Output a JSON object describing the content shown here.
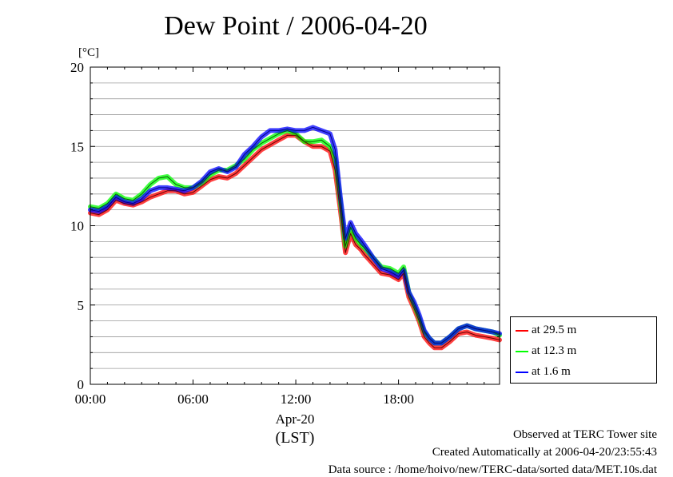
{
  "chart_data": {
    "type": "line",
    "title": "Dew Point / 2006-04-20",
    "yunit": "[°C]",
    "ylim": [
      0,
      20
    ],
    "xlim": [
      0,
      23.9
    ],
    "yticks": [
      "0",
      "5",
      "10",
      "15",
      "20"
    ],
    "xticks": [
      {
        "label": "00:00",
        "value": 0
      },
      {
        "label": "06:00",
        "value": 6
      },
      {
        "label": "12:00",
        "value": 12
      },
      {
        "label": "18:00",
        "value": 18
      }
    ],
    "xdate": "Apr-20",
    "xzone": "(LST)",
    "grid": true,
    "legend_position": "bottom-right",
    "series": [
      {
        "name": "at 29.5 m",
        "color": "#ff0000",
        "x": [
          0,
          0.5,
          1.0,
          1.5,
          2.0,
          2.5,
          3.0,
          3.5,
          4.0,
          4.5,
          5.0,
          5.5,
          6.0,
          6.5,
          7.0,
          7.5,
          8.0,
          8.5,
          9.0,
          9.5,
          10.0,
          10.5,
          11.0,
          11.5,
          12.0,
          12.5,
          13.0,
          13.5,
          14.0,
          14.3,
          14.6,
          14.9,
          15.2,
          15.5,
          15.8,
          16.0,
          16.5,
          17.0,
          17.5,
          18.0,
          18.3,
          18.6,
          18.9,
          19.2,
          19.5,
          19.8,
          20.1,
          20.5,
          21.0,
          21.5,
          22.0,
          22.5,
          23.0,
          23.5,
          23.9
        ],
        "y": [
          10.8,
          10.7,
          11.0,
          11.6,
          11.4,
          11.3,
          11.5,
          11.8,
          12.0,
          12.2,
          12.2,
          12.0,
          12.1,
          12.5,
          12.9,
          13.1,
          13.0,
          13.3,
          13.8,
          14.3,
          14.8,
          15.1,
          15.4,
          15.7,
          15.7,
          15.3,
          15.0,
          15.0,
          14.7,
          13.5,
          11.0,
          8.3,
          9.5,
          8.8,
          8.5,
          8.2,
          7.6,
          7.0,
          6.9,
          6.6,
          7.0,
          5.5,
          4.8,
          4.0,
          3.0,
          2.6,
          2.3,
          2.3,
          2.7,
          3.2,
          3.3,
          3.1,
          3.0,
          2.9,
          2.8
        ]
      },
      {
        "name": "at 12.3 m",
        "color": "#00ff00",
        "x": [
          0,
          0.5,
          1.0,
          1.5,
          2.0,
          2.5,
          3.0,
          3.5,
          4.0,
          4.5,
          5.0,
          5.5,
          6.0,
          6.5,
          7.0,
          7.5,
          8.0,
          8.5,
          9.0,
          9.5,
          10.0,
          10.5,
          11.0,
          11.5,
          12.0,
          12.5,
          13.0,
          13.5,
          14.0,
          14.3,
          14.6,
          14.9,
          15.2,
          15.5,
          15.8,
          16.0,
          16.5,
          17.0,
          17.5,
          18.0,
          18.3,
          18.6,
          18.9,
          19.2,
          19.5,
          19.8,
          20.1,
          20.5,
          21.0,
          21.5,
          22.0,
          22.5,
          23.0,
          23.5,
          23.9
        ],
        "y": [
          11.2,
          11.1,
          11.4,
          12.0,
          11.7,
          11.6,
          12.0,
          12.6,
          13.0,
          13.1,
          12.6,
          12.4,
          12.4,
          12.7,
          13.2,
          13.5,
          13.5,
          13.8,
          14.2,
          14.8,
          15.2,
          15.5,
          15.8,
          16.0,
          15.8,
          15.3,
          15.3,
          15.4,
          15.0,
          14.2,
          11.5,
          8.7,
          9.9,
          9.2,
          8.8,
          8.6,
          8.0,
          7.4,
          7.3,
          7.0,
          7.4,
          5.8,
          5.0,
          4.2,
          3.3,
          2.9,
          2.6,
          2.6,
          3.0,
          3.5,
          3.7,
          3.5,
          3.4,
          3.3,
          3.1
        ]
      },
      {
        "name": "at 1.6 m",
        "color": "#0000ff",
        "x": [
          0,
          0.5,
          1.0,
          1.5,
          2.0,
          2.5,
          3.0,
          3.5,
          4.0,
          4.5,
          5.0,
          5.5,
          6.0,
          6.5,
          7.0,
          7.5,
          8.0,
          8.5,
          9.0,
          9.5,
          10.0,
          10.5,
          11.0,
          11.5,
          12.0,
          12.5,
          13.0,
          13.5,
          14.0,
          14.3,
          14.6,
          14.9,
          15.2,
          15.5,
          15.8,
          16.0,
          16.5,
          17.0,
          17.5,
          18.0,
          18.3,
          18.6,
          18.9,
          19.2,
          19.5,
          19.8,
          20.1,
          20.5,
          21.0,
          21.5,
          22.0,
          22.5,
          23.0,
          23.5,
          23.9
        ],
        "y": [
          11.0,
          10.9,
          11.2,
          11.8,
          11.5,
          11.4,
          11.7,
          12.2,
          12.4,
          12.4,
          12.3,
          12.2,
          12.4,
          12.8,
          13.4,
          13.6,
          13.4,
          13.7,
          14.5,
          15.0,
          15.6,
          16.0,
          16.0,
          16.1,
          16.0,
          16.0,
          16.2,
          16.0,
          15.8,
          14.8,
          11.8,
          9.2,
          10.2,
          9.5,
          9.1,
          8.8,
          8.0,
          7.3,
          7.1,
          6.8,
          7.2,
          5.8,
          5.2,
          4.4,
          3.4,
          2.9,
          2.6,
          2.6,
          3.0,
          3.5,
          3.7,
          3.5,
          3.4,
          3.3,
          3.2
        ]
      }
    ],
    "annotations": [
      "Observed at TERC Tower site",
      "Created Automatically at 2006-04-20/23:55:43",
      "Data source : /home/hoivo/new/TERC-data/sorted  data/MET.10s.dat"
    ]
  }
}
